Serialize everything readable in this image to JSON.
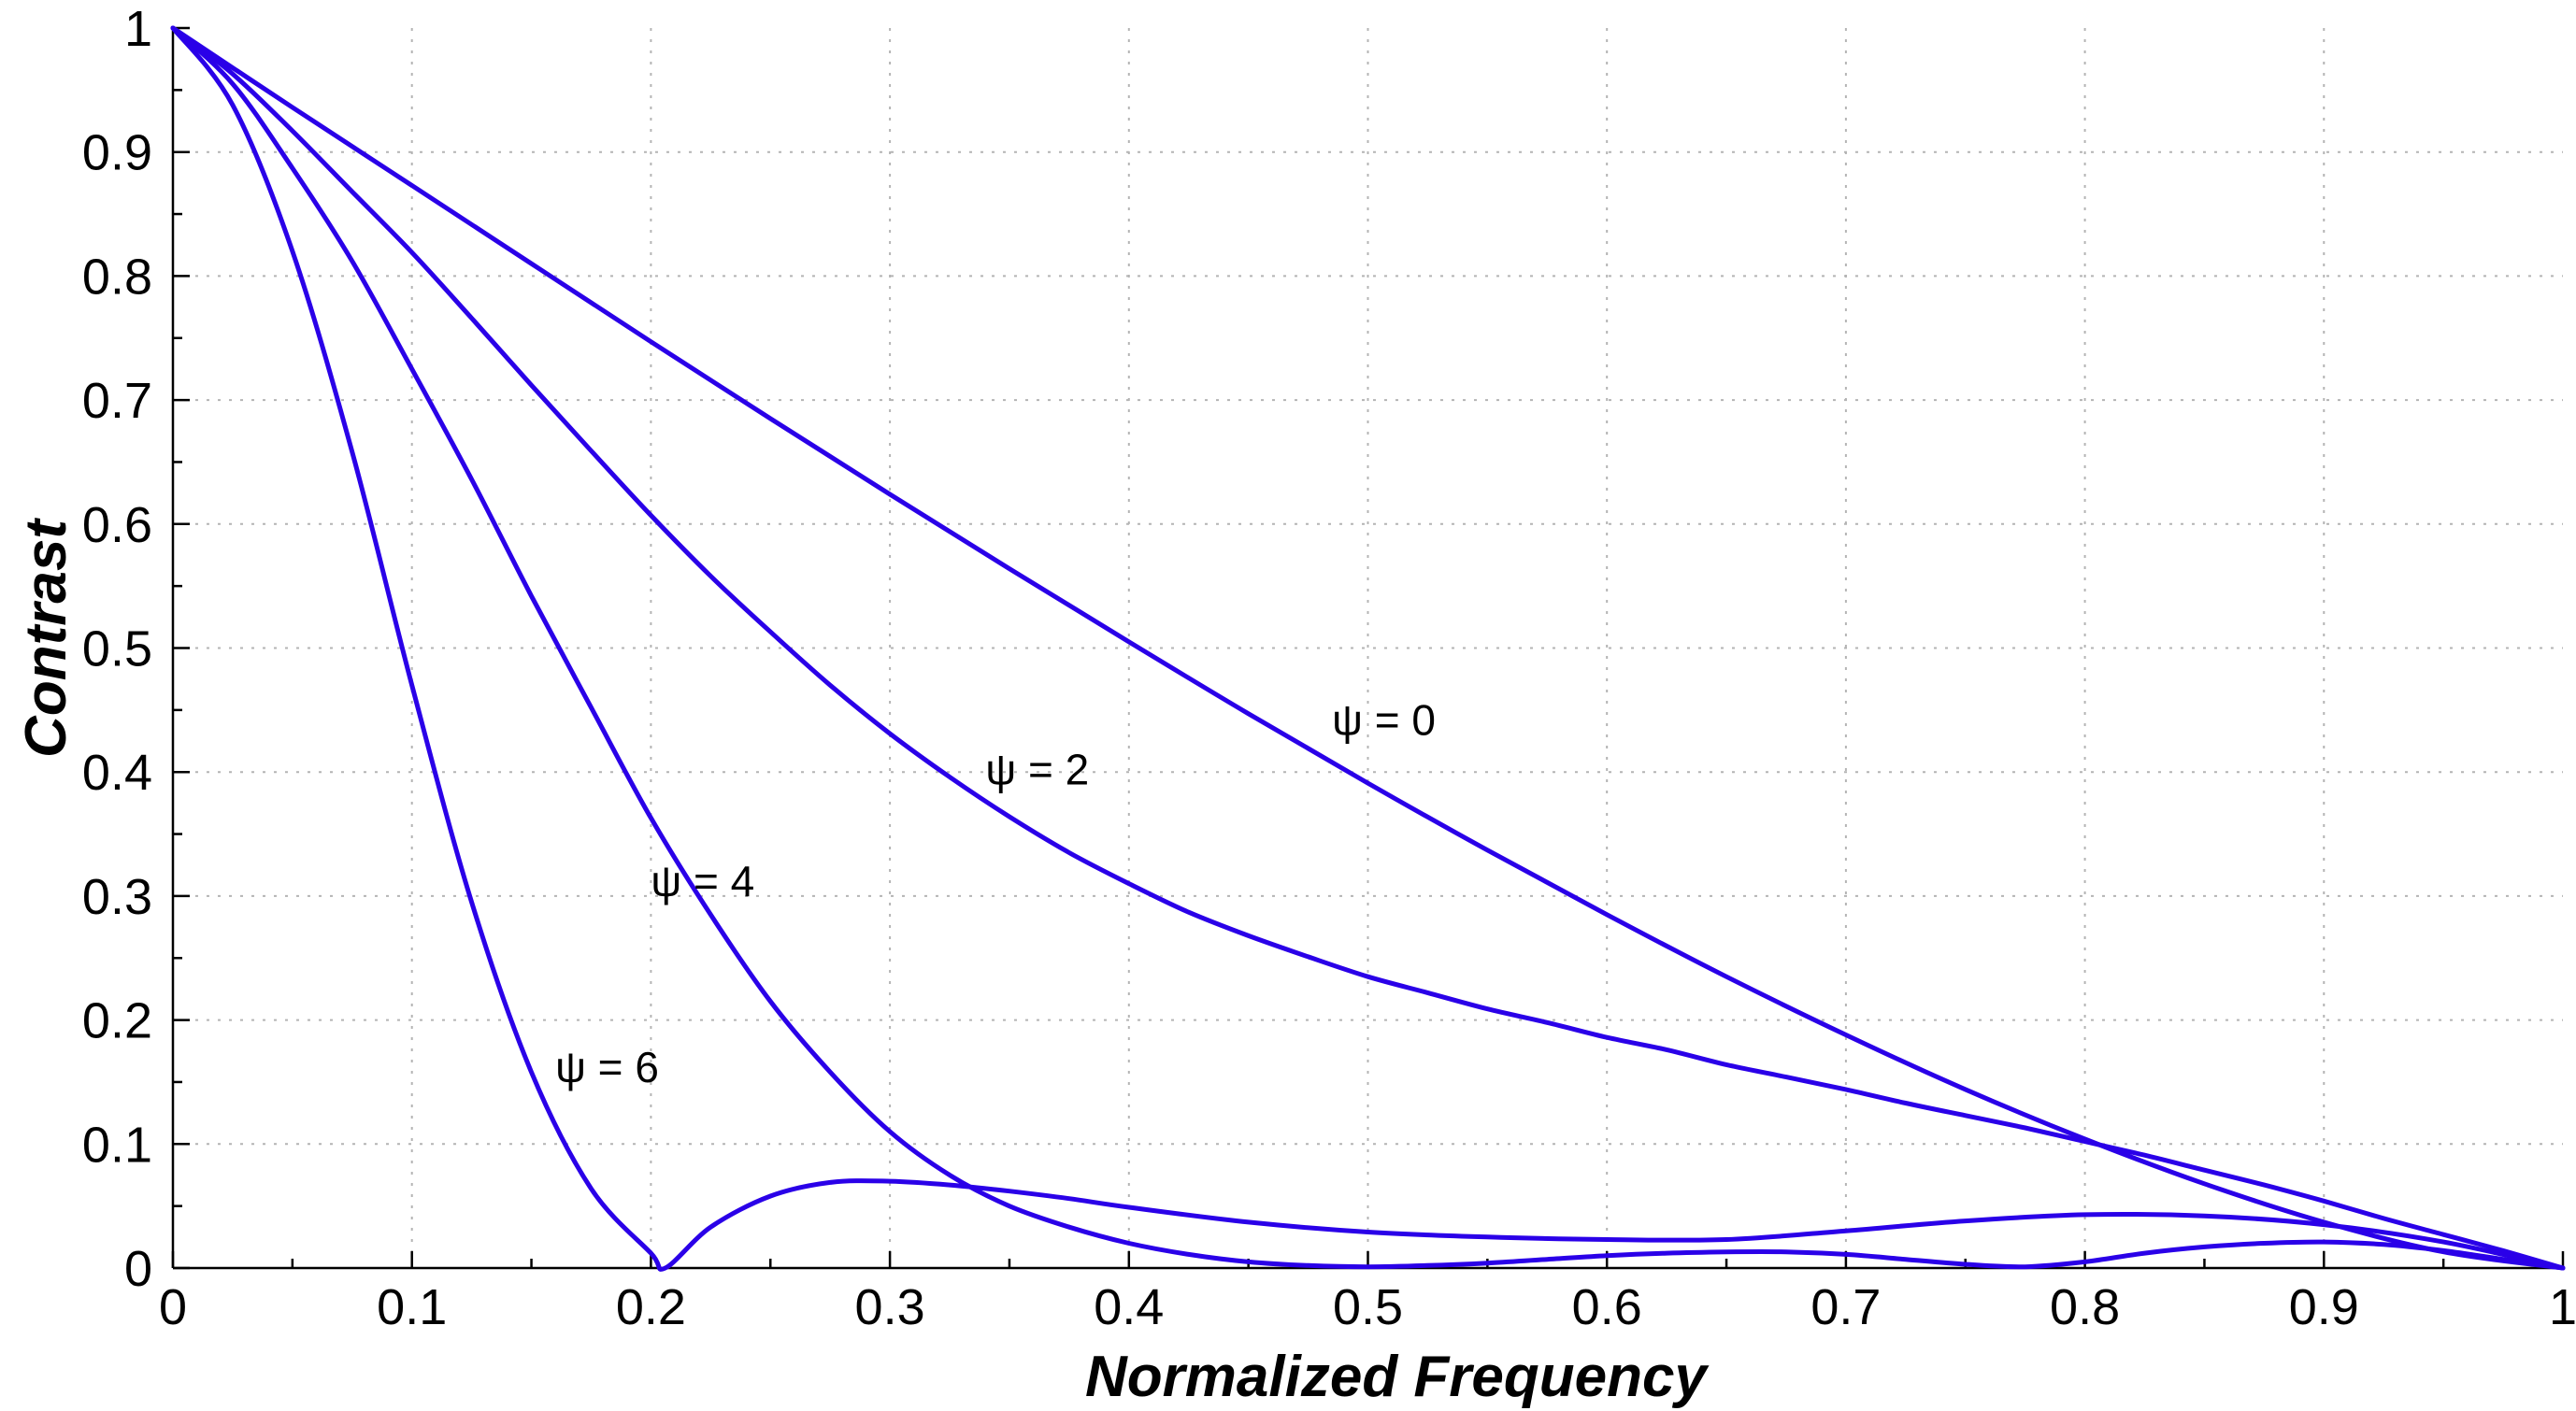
{
  "chart_data": {
    "type": "line",
    "title": "",
    "xlabel": "Normalized Frequency",
    "ylabel": "Contrast",
    "xlim": [
      0,
      1
    ],
    "ylim": [
      0,
      1
    ],
    "grid": true,
    "xticks": [
      0,
      0.1,
      0.2,
      0.3,
      0.4,
      0.5,
      0.6,
      0.7,
      0.8,
      0.9,
      1
    ],
    "xtick_labels": [
      "0",
      "0.1",
      "0.2",
      "0.3",
      "0.4",
      "0.5",
      "0.6",
      "0.7",
      "0.8",
      "0.9",
      "1"
    ],
    "yticks": [
      0,
      0.1,
      0.2,
      0.3,
      0.4,
      0.5,
      0.6,
      0.7,
      0.8,
      0.9,
      1
    ],
    "ytick_labels": [
      "0",
      "0.1",
      "0.2",
      "0.3",
      "0.4",
      "0.5",
      "0.6",
      "0.7",
      "0.8",
      "0.9",
      "1"
    ],
    "line_color": "#2a00e8",
    "series": [
      {
        "name": "ψ = 0",
        "x": [
          0,
          0.05,
          0.1,
          0.15,
          0.2,
          0.25,
          0.3,
          0.35,
          0.4,
          0.45,
          0.5,
          0.55,
          0.6,
          0.65,
          0.7,
          0.75,
          0.8,
          0.85,
          0.9,
          0.95,
          1
        ],
        "y": [
          1,
          0.936,
          0.873,
          0.81,
          0.747,
          0.685,
          0.624,
          0.564,
          0.505,
          0.447,
          0.391,
          0.337,
          0.285,
          0.235,
          0.188,
          0.144,
          0.104,
          0.068,
          0.037,
          0.013,
          0
        ]
      },
      {
        "name": "ψ = 2",
        "x": [
          0,
          0.025,
          0.05,
          0.075,
          0.1,
          0.125,
          0.15,
          0.175,
          0.2,
          0.225,
          0.25,
          0.275,
          0.3,
          0.325,
          0.35,
          0.375,
          0.4,
          0.425,
          0.45,
          0.475,
          0.5,
          0.525,
          0.55,
          0.575,
          0.6,
          0.625,
          0.65,
          0.675,
          0.7,
          0.725,
          0.75,
          0.775,
          0.8,
          0.825,
          0.85,
          0.875,
          0.9,
          0.925,
          0.95,
          0.975,
          1
        ],
        "y": [
          1,
          0.963,
          0.917,
          0.868,
          0.819,
          0.766,
          0.712,
          0.659,
          0.607,
          0.558,
          0.513,
          0.47,
          0.431,
          0.396,
          0.364,
          0.335,
          0.31,
          0.287,
          0.268,
          0.251,
          0.235,
          0.222,
          0.209,
          0.198,
          0.186,
          0.176,
          0.164,
          0.154,
          0.144,
          0.133,
          0.123,
          0.113,
          0.102,
          0.091,
          0.079,
          0.067,
          0.054,
          0.04,
          0.027,
          0.014,
          0
        ]
      },
      {
        "name": "ψ = 4",
        "x": [
          0,
          0.025,
          0.05,
          0.075,
          0.1,
          0.125,
          0.15,
          0.175,
          0.2,
          0.225,
          0.25,
          0.275,
          0.3,
          0.325,
          0.35,
          0.375,
          0.4,
          0.425,
          0.45,
          0.475,
          0.5,
          0.525,
          0.55,
          0.575,
          0.6,
          0.625,
          0.65,
          0.675,
          0.7,
          0.725,
          0.75,
          0.775,
          0.8,
          0.825,
          0.85,
          0.875,
          0.9,
          0.925,
          0.95,
          0.975,
          1
        ],
        "y": [
          1,
          0.955,
          0.887,
          0.812,
          0.725,
          0.636,
          0.542,
          0.452,
          0.363,
          0.285,
          0.215,
          0.158,
          0.11,
          0.075,
          0.05,
          0.033,
          0.02,
          0.011,
          0.005,
          0.002,
          0.001,
          0.002,
          0.004,
          0.007,
          0.01,
          0.012,
          0.013,
          0.013,
          0.011,
          0.007,
          0.003,
          0.001,
          0.005,
          0.012,
          0.017,
          0.02,
          0.021,
          0.019,
          0.014,
          0.007,
          0
        ]
      },
      {
        "name": "ψ = 6",
        "x": [
          0,
          0.025,
          0.05,
          0.075,
          0.1,
          0.125,
          0.15,
          0.175,
          0.2,
          0.206,
          0.225,
          0.25,
          0.275,
          0.3,
          0.325,
          0.35,
          0.375,
          0.4,
          0.45,
          0.5,
          0.55,
          0.6,
          0.65,
          0.7,
          0.75,
          0.8,
          0.85,
          0.9,
          0.95,
          1
        ],
        "y": [
          1,
          0.938,
          0.82,
          0.658,
          0.47,
          0.295,
          0.158,
          0.064,
          0.012,
          0,
          0.033,
          0.058,
          0.069,
          0.07,
          0.067,
          0.062,
          0.056,
          0.049,
          0.037,
          0.029,
          0.025,
          0.023,
          0.023,
          0.03,
          0.038,
          0.043,
          0.042,
          0.035,
          0.021,
          0
        ]
      }
    ],
    "annotations": [
      {
        "text": "ψ = 0",
        "x": 0.485,
        "y": 0.43
      },
      {
        "text": "ψ = 2",
        "x": 0.34,
        "y": 0.39
      },
      {
        "text": "ψ = 4",
        "x": 0.2,
        "y": 0.3
      },
      {
        "text": "ψ = 6",
        "x": 0.16,
        "y": 0.15
      }
    ]
  }
}
